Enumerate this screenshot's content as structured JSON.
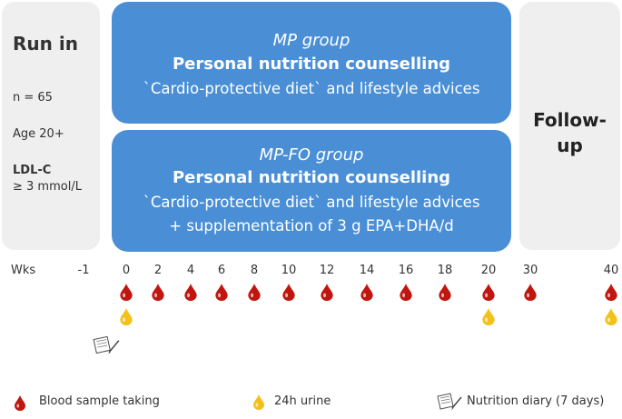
{
  "run_in": {
    "title": "Run in",
    "n": "n = 65",
    "age": "Age 20+",
    "ldl_label": "LDL-C",
    "ldl_value": "≥ 3 mmol/L"
  },
  "mp_group": {
    "name": "MP group",
    "heading": "Personal nutrition counselling",
    "line": "`Cardio-protective diet` and lifestyle advices"
  },
  "mpfo_group": {
    "name": "MP-FO group",
    "heading": "Personal nutrition counselling",
    "line1": "`Cardio-protective diet` and lifestyle advices",
    "line2": "+ supplementation of 3 g EPA+DHA/d"
  },
  "follow_up": {
    "line1": "Follow-",
    "line2": "up"
  },
  "timeline": {
    "label": "Wks",
    "weeks": [
      "-1",
      "0",
      "2",
      "4",
      "6",
      "8",
      "10",
      "12",
      "14",
      "16",
      "18",
      "20",
      "30",
      "40"
    ]
  },
  "legend": {
    "blood": "Blood sample taking",
    "urine": "24h urine",
    "diary": "Nutrition diary (7 days)"
  },
  "colors": {
    "group_box": "#4a8fd6",
    "panel_grey": "#efefef",
    "blood_drop": "#c0160f",
    "urine_drop": "#f2c21b"
  },
  "icons": {
    "blood": "blood-drop-icon",
    "urine": "urine-drop-icon",
    "diary": "diary-icon"
  }
}
